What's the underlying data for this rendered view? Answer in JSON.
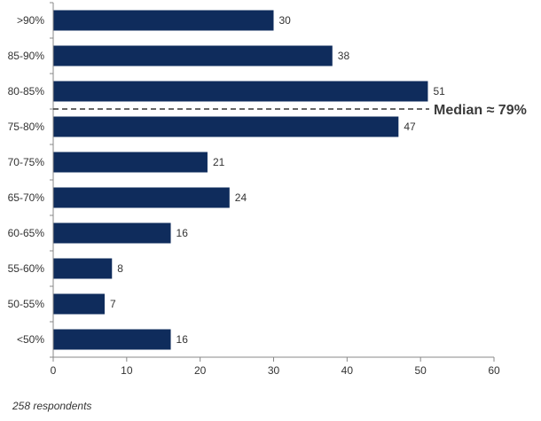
{
  "chart_data": {
    "type": "bar",
    "orientation": "horizontal",
    "categories": [
      ">90%",
      "85-90%",
      "80-85%",
      "75-80%",
      "70-75%",
      "65-70%",
      "60-65%",
      "55-60%",
      "50-55%",
      "<50%"
    ],
    "values": [
      30,
      38,
      51,
      47,
      21,
      24,
      16,
      8,
      7,
      16
    ],
    "xlim": [
      0,
      60
    ],
    "xticks": [
      0,
      10,
      20,
      30,
      40,
      50,
      60
    ],
    "grid": false,
    "bar_color": "#0f2c5c",
    "median": {
      "label": "Median ≈ 79%",
      "position_between": [
        "80-85%",
        "75-80%"
      ]
    }
  },
  "footnote": "258 respondents"
}
